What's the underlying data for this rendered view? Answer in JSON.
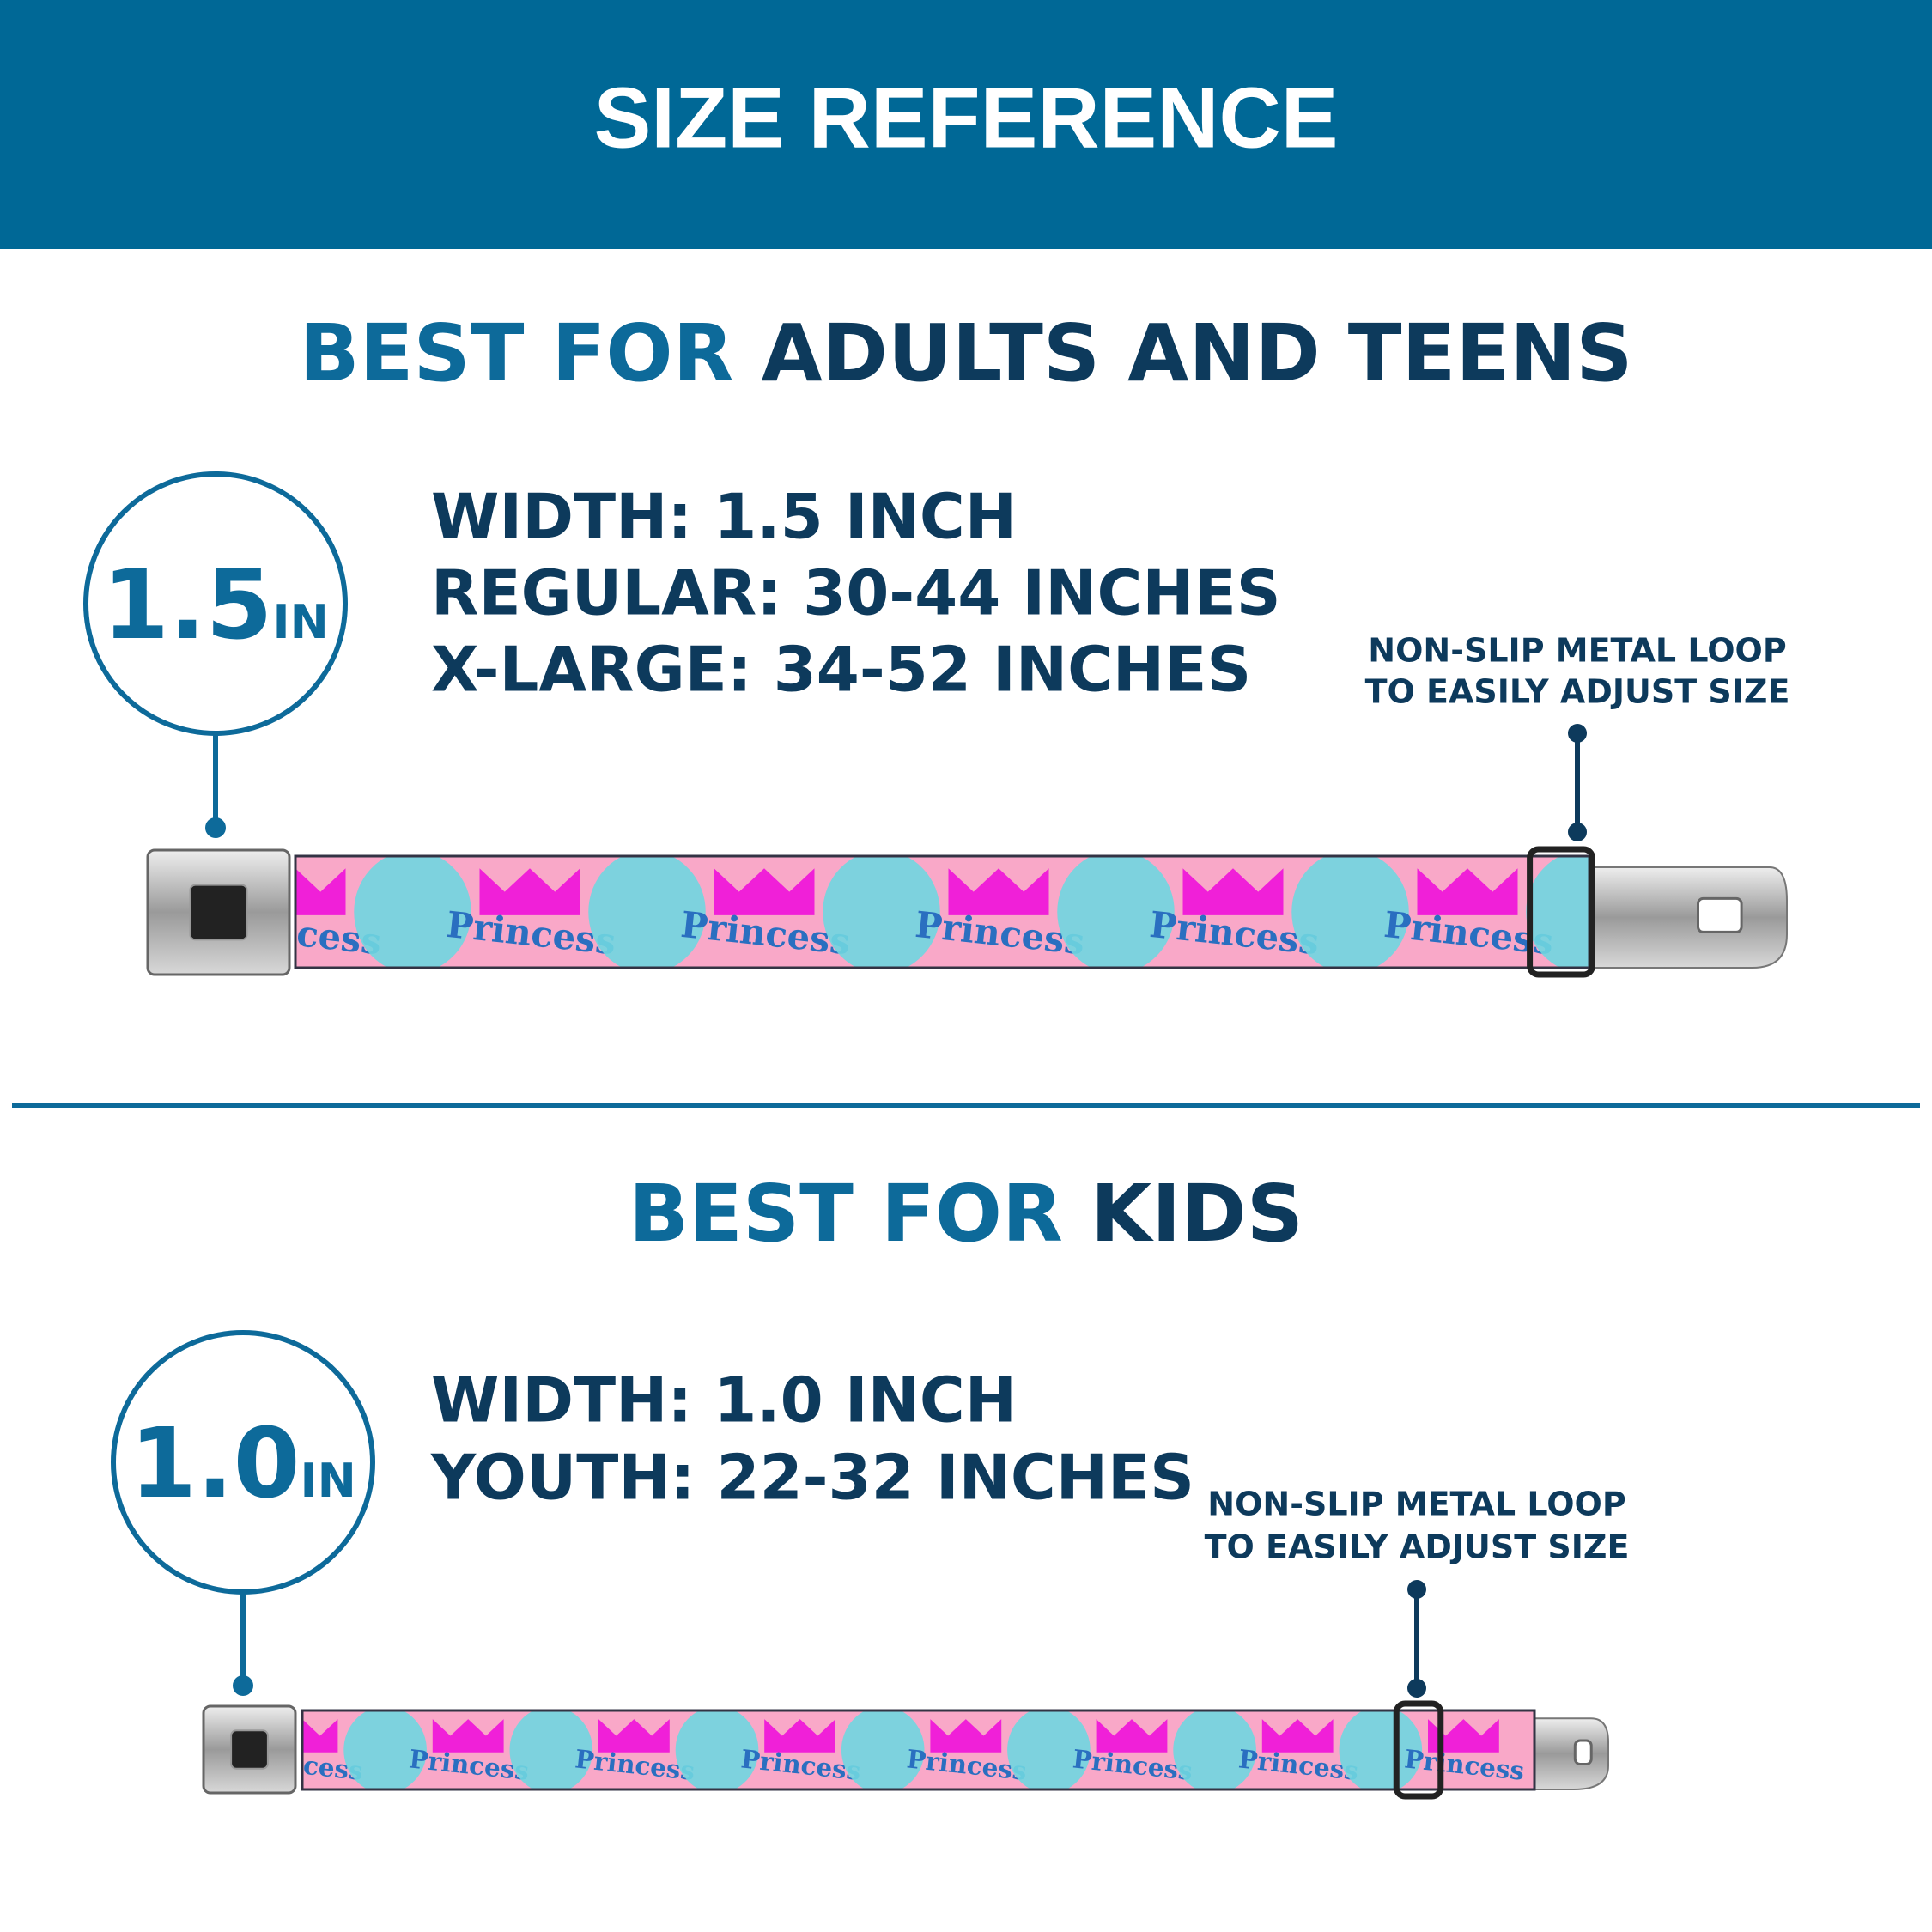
{
  "header": {
    "title": "SIZE REFERENCE"
  },
  "sections": [
    {
      "heading_prefix": "BEST FOR",
      "heading": "ADULTS AND TEENS",
      "badge": {
        "number": "1.5",
        "unit": "IN"
      },
      "specs": [
        "WIDTH: 1.5 INCH",
        "REGULAR: 30-44 INCHES",
        "X-LARGE: 34-52 INCHES"
      ],
      "callout": [
        "NON-SLIP METAL LOOP",
        "TO EASILY ADJUST SIZE"
      ],
      "belt_text": "Princess"
    },
    {
      "heading_prefix": "BEST FOR",
      "heading": "KIDS",
      "badge": {
        "number": "1.0",
        "unit": "IN"
      },
      "specs": [
        "WIDTH: 1.0 INCH",
        "YOUTH: 22-32 INCHES"
      ],
      "callout": [
        "NON-SLIP METAL LOOP",
        "TO EASILY ADJUST SIZE"
      ],
      "belt_text": "Princess"
    }
  ]
}
